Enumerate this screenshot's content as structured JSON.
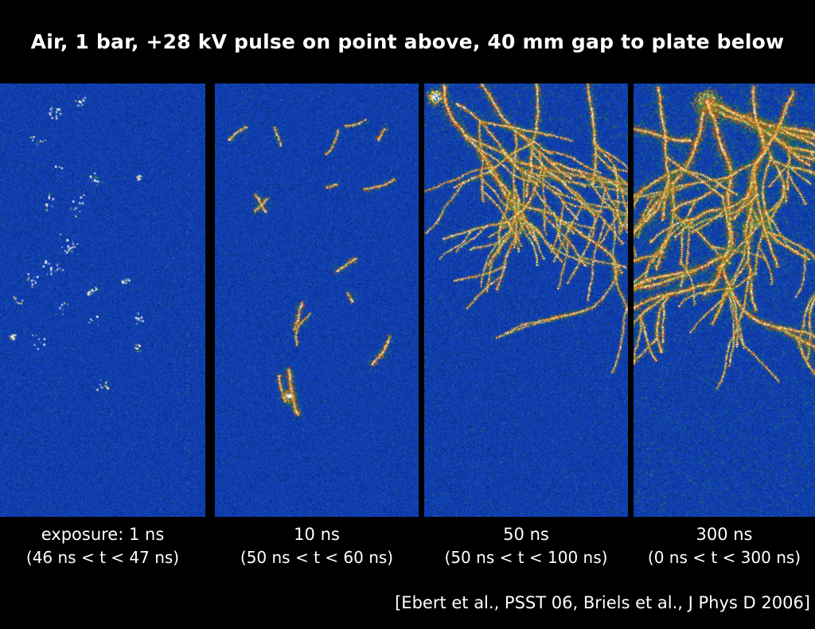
{
  "title": "Air, 1 bar, +28 kV pulse on point above, 40 mm gap to plate below",
  "citation": "[Ebert et al., PSST 06, Briels et al., J Phys D 2006]",
  "panels": [
    {
      "type": "specks",
      "exposure_label": "exposure: 1 ns",
      "time_window": "(46 ns < t < 47 ns)"
    },
    {
      "type": "streaks",
      "exposure_label": "10 ns",
      "time_window": "(50 ns < t < 60 ns)"
    },
    {
      "type": "tree",
      "exposure_label": "50 ns",
      "time_window": "(50 ns < t < 100 ns)"
    },
    {
      "type": "dense-tree",
      "exposure_label": "300 ns",
      "time_window": "(0 ns < t < 300 ns)"
    }
  ],
  "colors": {
    "background": "#000000",
    "text": "#ffffff",
    "panel_blue": "#0d3fa6",
    "streamer_green": "#2e8b3c",
    "streamer_orange": "#e07414",
    "streamer_red": "#c43c08",
    "streamer_yellow": "#ffd24a",
    "streamer_cream": "#fff2c8",
    "streamer_white": "#ffffff",
    "streamer_lavender": "#dcd6f0"
  }
}
